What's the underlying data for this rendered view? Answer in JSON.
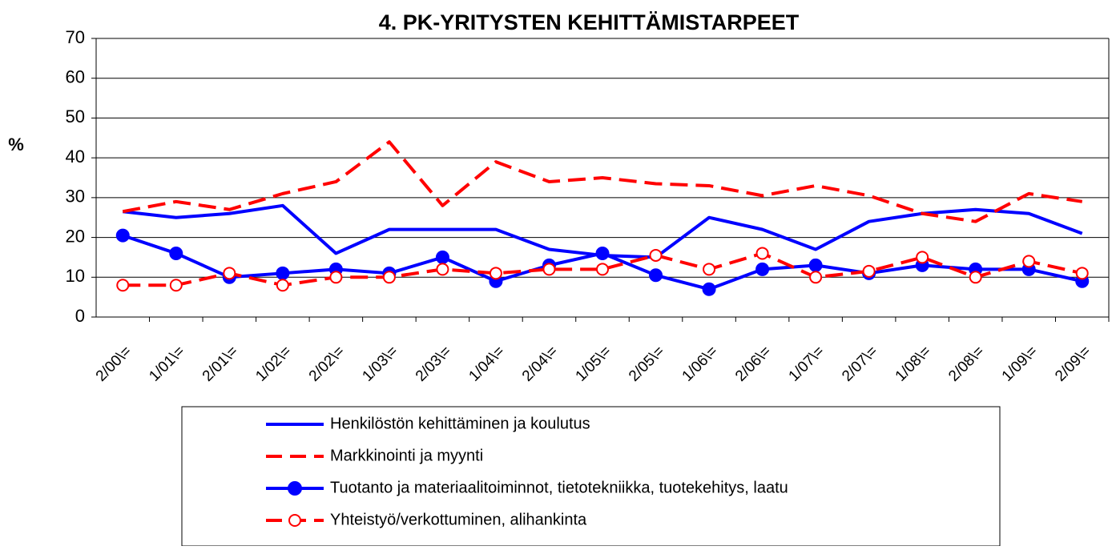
{
  "chart_data": {
    "type": "line",
    "title": "4. PK-YRITYSTEN KEHITTÄMISTARPEET",
    "y_label": "%",
    "categories": [
      "2/00\\=",
      "1/01\\=",
      "2/01\\=",
      "1/02\\=",
      "2/02\\=",
      "1/03\\=",
      "2/03\\=",
      "1/04\\=",
      "2/04\\=",
      "1/05\\=",
      "2/05\\=",
      "1/06\\=",
      "2/06\\=",
      "1/07\\=",
      "2/07\\=",
      "1/08\\=",
      "2/08\\=",
      "1/09\\=",
      "2/09\\="
    ],
    "series": [
      {
        "name": "Henkilöstön kehittäminen ja koulutus",
        "color": "#0000ff",
        "dash": false,
        "marker": "none",
        "values": [
          26.5,
          25,
          26,
          28,
          16,
          22,
          22,
          22,
          17,
          15.5,
          15,
          25,
          22,
          17,
          24,
          26,
          27,
          26,
          21
        ]
      },
      {
        "name": "Markkinointi ja myynti",
        "color": "#ff0000",
        "dash": true,
        "marker": "none",
        "values": [
          26.5,
          29,
          27,
          31,
          34,
          44,
          28,
          39,
          34,
          35,
          33.5,
          33,
          30.5,
          33,
          30.5,
          26,
          24,
          31,
          29
        ]
      },
      {
        "name": "Tuotanto ja materiaalitoiminnot, tietotekniikka, tuotekehitys, laatu",
        "color": "#0000ff",
        "dash": false,
        "marker": "filled",
        "values": [
          20.5,
          16,
          10,
          11,
          12,
          11,
          15,
          9,
          13,
          16,
          10.5,
          7,
          12,
          13,
          11,
          13,
          12,
          12,
          9
        ]
      },
      {
        "name": "Yhteistyö/verkottuminen, alihankinta",
        "color": "#ff0000",
        "dash": true,
        "marker": "open",
        "values": [
          8,
          8,
          11,
          8,
          10,
          10,
          12,
          11,
          12,
          12,
          15.5,
          12,
          16,
          10,
          11.5,
          15,
          10,
          14,
          11
        ]
      }
    ],
    "ylim": [
      0,
      70
    ],
    "yticks": [
      0,
      10,
      20,
      30,
      40,
      50,
      60,
      70
    ],
    "grid": true
  }
}
